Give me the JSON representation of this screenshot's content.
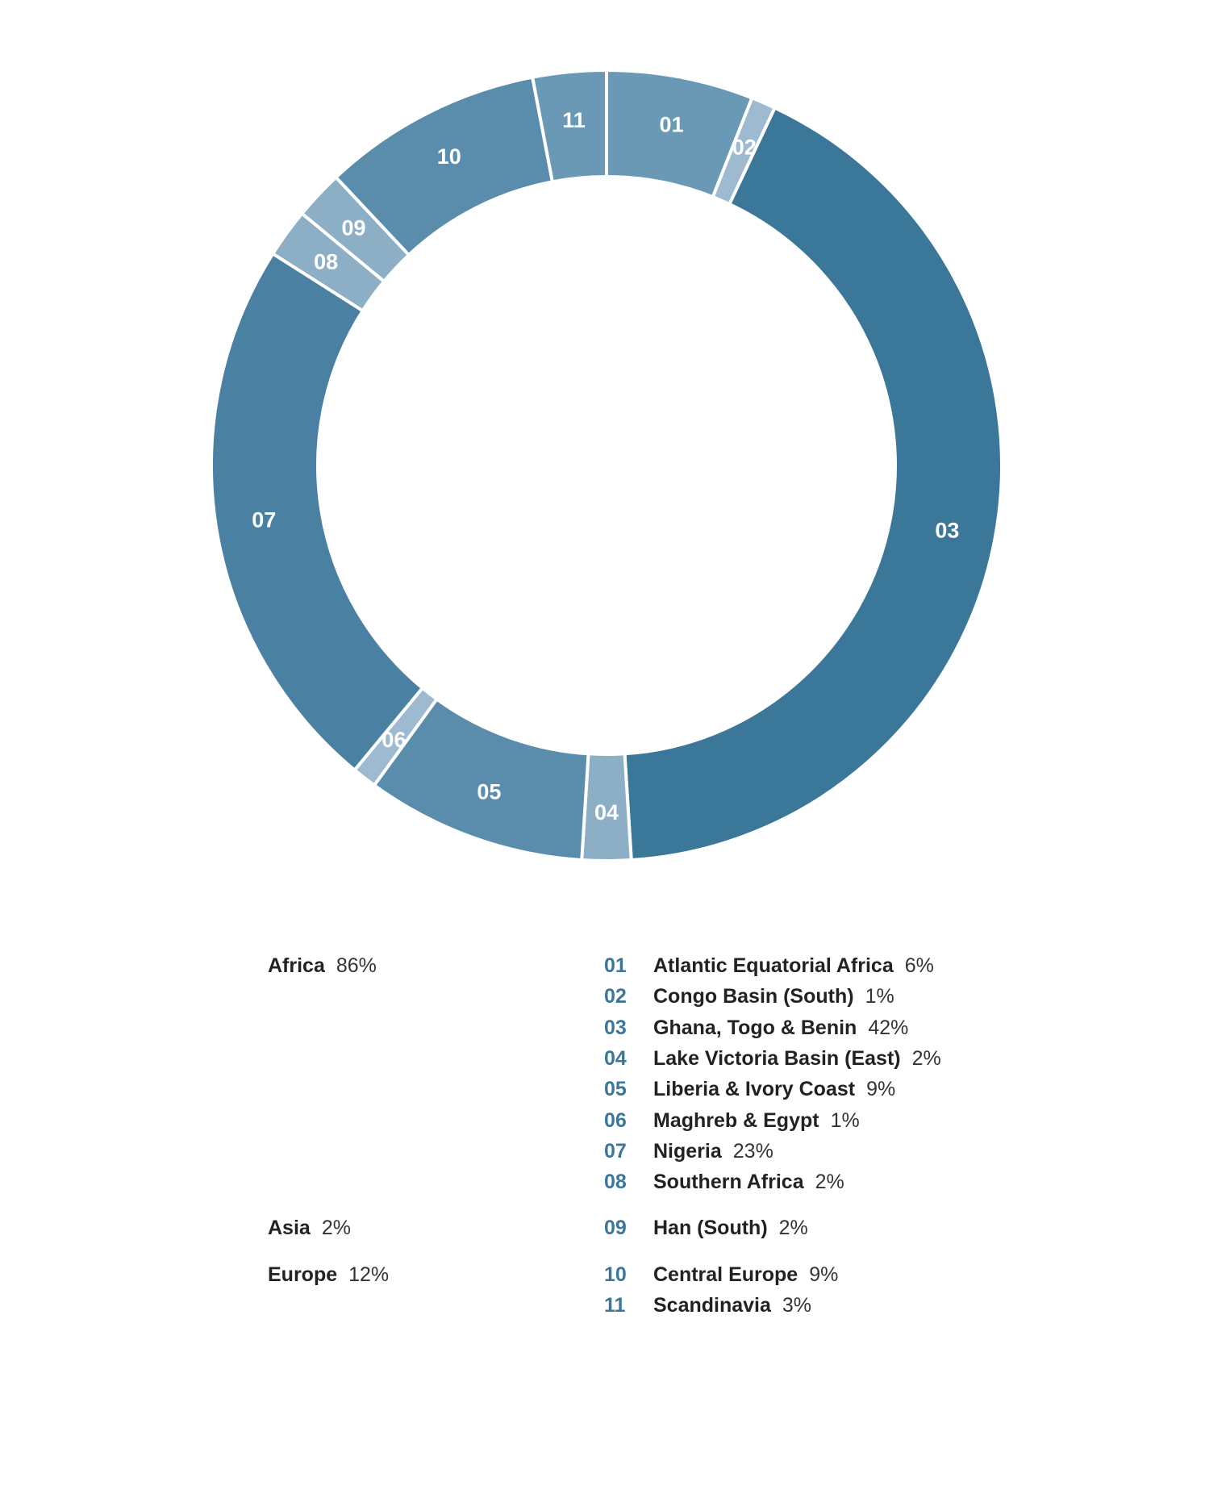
{
  "colors": {
    "dark": "#3a7799",
    "mid_dark": "#4a81a3",
    "mid": "#5a8cac",
    "mid_light": "#6a99b5",
    "light": "#8dafc6",
    "lightest": "#9dbad0",
    "code_text": "#3a7799"
  },
  "chart_data": {
    "type": "pie",
    "style": "donut",
    "segments": [
      {
        "code": "01",
        "name": "Atlantic Equatorial Africa",
        "percent": 6,
        "color": "#6a99b5"
      },
      {
        "code": "02",
        "name": "Congo Basin (South)",
        "percent": 1,
        "color": "#9dbad0"
      },
      {
        "code": "03",
        "name": "Ghana, Togo & Benin",
        "percent": 42,
        "color": "#3a7799"
      },
      {
        "code": "04",
        "name": "Lake Victoria Basin (East)",
        "percent": 2,
        "color": "#8dafc6"
      },
      {
        "code": "05",
        "name": "Liberia & Ivory Coast",
        "percent": 9,
        "color": "#5a8cac"
      },
      {
        "code": "06",
        "name": "Maghreb & Egypt",
        "percent": 1,
        "color": "#9dbad0"
      },
      {
        "code": "07",
        "name": "Nigeria",
        "percent": 23,
        "color": "#4a81a3"
      },
      {
        "code": "08",
        "name": "Southern Africa",
        "percent": 2,
        "color": "#8dafc6"
      },
      {
        "code": "09",
        "name": "Han (South)",
        "percent": 2,
        "color": "#8dafc6"
      },
      {
        "code": "10",
        "name": "Central Europe",
        "percent": 9,
        "color": "#5a8cac"
      },
      {
        "code": "11",
        "name": "Scandinavia",
        "percent": 3,
        "color": "#6a99b5"
      }
    ],
    "regions": [
      {
        "name": "Africa",
        "percent": "86%",
        "segments": [
          "01",
          "02",
          "03",
          "04",
          "05",
          "06",
          "07",
          "08"
        ]
      },
      {
        "name": "Asia",
        "percent": "2%",
        "segments": [
          "09"
        ]
      },
      {
        "name": "Europe",
        "percent": "12%",
        "segments": [
          "10",
          "11"
        ]
      }
    ]
  },
  "legend": {
    "regions": [
      {
        "name": "Africa",
        "percent": "86%"
      },
      {
        "name": "Asia",
        "percent": "2%"
      },
      {
        "name": "Europe",
        "percent": "12%"
      }
    ],
    "items": [
      {
        "code": "01",
        "name": "Atlantic Equatorial Africa",
        "percent": "6%"
      },
      {
        "code": "02",
        "name": "Congo Basin (South)",
        "percent": "1%"
      },
      {
        "code": "03",
        "name": "Ghana, Togo & Benin",
        "percent": "42%"
      },
      {
        "code": "04",
        "name": "Lake Victoria Basin (East)",
        "percent": "2%"
      },
      {
        "code": "05",
        "name": "Liberia & Ivory Coast",
        "percent": "9%"
      },
      {
        "code": "06",
        "name": "Maghreb & Egypt",
        "percent": "1%"
      },
      {
        "code": "07",
        "name": "Nigeria",
        "percent": "23%"
      },
      {
        "code": "08",
        "name": "Southern Africa",
        "percent": "2%"
      },
      {
        "code": "09",
        "name": "Han (South)",
        "percent": "2%"
      },
      {
        "code": "10",
        "name": "Central Europe",
        "percent": "9%"
      },
      {
        "code": "11",
        "name": "Scandinavia",
        "percent": "3%"
      }
    ]
  }
}
